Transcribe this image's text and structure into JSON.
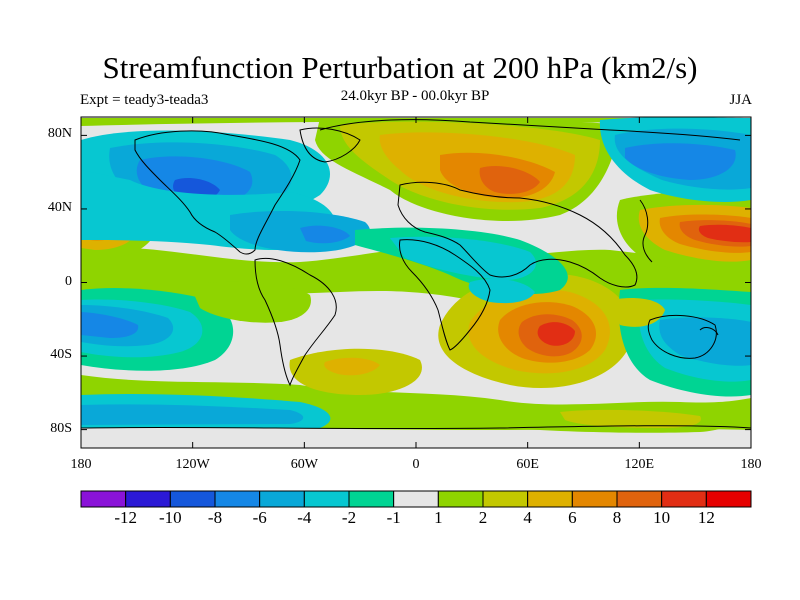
{
  "title": "Streamfunction Perturbation at 200 hPa (km2/s)",
  "left_label": "Expt = teady3-teada3",
  "center_label": "24.0kyr BP - 00.0kyr BP",
  "right_label": "JJA",
  "chart_data": {
    "type": "heatmap",
    "title": "Streamfunction Perturbation at 200 hPa (km2/s)",
    "subtitle": "24.0kyr BP - 00.0kyr BP",
    "xlim": [
      -180,
      180
    ],
    "ylim": [
      -90,
      90
    ],
    "x_ticks": [
      "180",
      "120W",
      "60W",
      "0",
      "60E",
      "120E",
      "180"
    ],
    "x_tick_values": [
      -180,
      -120,
      -60,
      0,
      60,
      120,
      180
    ],
    "y_ticks": [
      "80N",
      "40N",
      "0",
      "40S",
      "80S"
    ],
    "y_tick_values": [
      80,
      40,
      0,
      -40,
      -80
    ],
    "colorbar_labels": [
      "-12",
      "-10",
      "-8",
      "-6",
      "-4",
      "-2",
      "-1",
      "1",
      "2",
      "4",
      "6",
      "8",
      "10",
      "12"
    ],
    "colorbar_levels": [
      -12,
      -10,
      -8,
      -6,
      -4,
      -2,
      -1,
      1,
      2,
      4,
      6,
      8,
      10,
      12
    ],
    "colorbar_colors": [
      "#8a13d8",
      "#2b19d6",
      "#1557db",
      "#1587e6",
      "#09a8d8",
      "#07c7d1",
      "#00d493",
      "#e6e6e6",
      "#8fd400",
      "#c3c800",
      "#deb100",
      "#e48700",
      "#e0630d",
      "#e12e14",
      "#e60000"
    ],
    "features": [
      {
        "lon": 78,
        "lat": -25,
        "value": 12
      },
      {
        "lon": 50,
        "lat": 53,
        "value": 9
      },
      {
        "lon": -180,
        "lat": 33,
        "value": 11
      },
      {
        "lon": 178,
        "lat": 27,
        "value": 11
      },
      {
        "lon": -30,
        "lat": -45,
        "value": 4
      },
      {
        "lon": -160,
        "lat": -25,
        "value": -6
      },
      {
        "lon": 140,
        "lat": 60,
        "value": -7
      },
      {
        "lon": -115,
        "lat": 40,
        "value": -8
      }
    ]
  }
}
